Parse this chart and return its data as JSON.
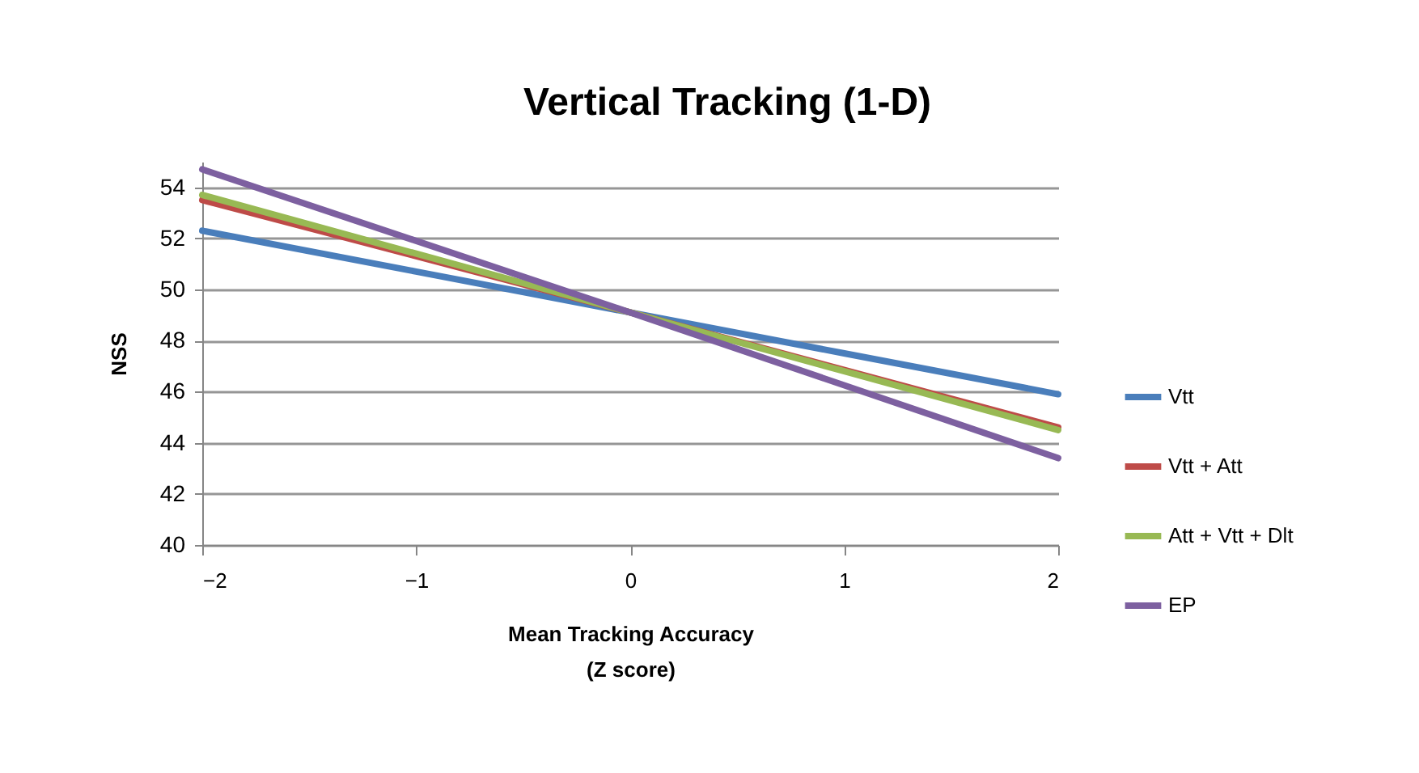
{
  "chart_data": {
    "type": "line",
    "title": "Vertical Tracking (1-D)",
    "xlabel": "Mean Tracking  Accuracy\n(Z score)",
    "ylabel": "NSS",
    "x": [
      -2,
      0,
      2
    ],
    "series": [
      {
        "name": "Vtt",
        "color": "#4a7ebb",
        "values": [
          52.3,
          49.1,
          45.9
        ]
      },
      {
        "name": "Vtt + Att",
        "color": "#be4b48",
        "values": [
          53.5,
          49.1,
          44.6
        ]
      },
      {
        "name": "Att + Vtt  + Dlt",
        "color": "#98b954",
        "values": [
          53.7,
          49.1,
          44.5
        ]
      },
      {
        "name": "EP",
        "color": "#7d60a0",
        "values": [
          54.7,
          49.1,
          43.4
        ]
      }
    ],
    "xlim": [
      -2,
      2
    ],
    "xticks": [
      -2,
      -1,
      0,
      1,
      2
    ],
    "ylim": [
      40,
      55
    ],
    "yticks": [
      40,
      42,
      44,
      46,
      48,
      50,
      52,
      54
    ],
    "grid": "y",
    "legend": "right",
    "marker": "none",
    "line_style": "solid"
  }
}
